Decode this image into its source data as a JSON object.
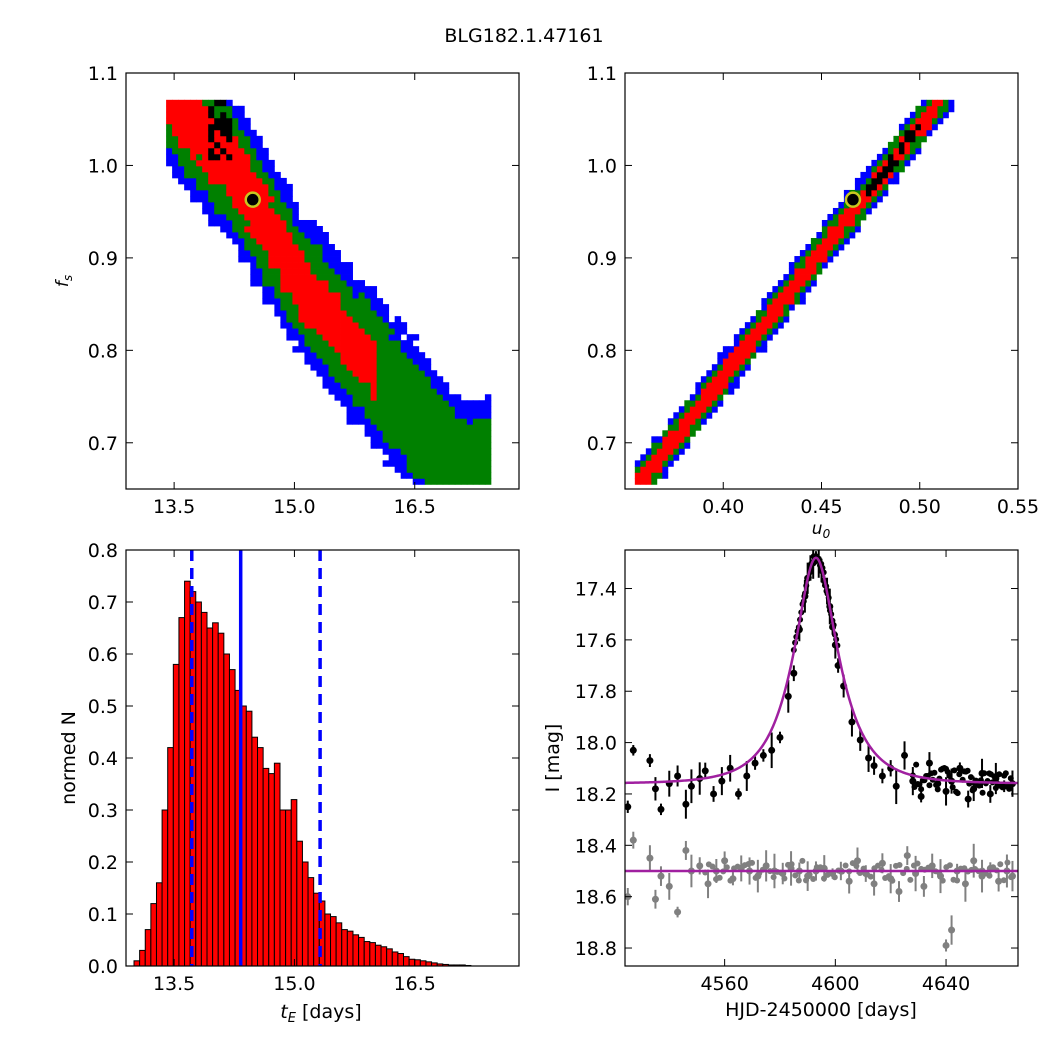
{
  "figure_title": "BLG182.1.47161",
  "colors": {
    "sigma1": "#ff0000",
    "sigma2": "#008000",
    "sigma3": "#0000ff",
    "core": "#000000",
    "best_fit_face": "#000000",
    "best_fit_ring": "#c8c820",
    "hist_bar": "#ff0000",
    "hist_edge": "#000000",
    "median_line": "#0000ff",
    "model_line": "#a020a0",
    "ogle_points": "#000000",
    "baseline_points": "#808080"
  },
  "chart_data": [
    {
      "type": "heatmap",
      "panel": "fs_vs_tE",
      "xlabel": "",
      "ylabel": "f_s",
      "xlim": [
        12.9,
        17.8
      ],
      "ylim": [
        0.65,
        1.1
      ],
      "xticks": [
        "13.5",
        "15.0",
        "16.5"
      ],
      "yticks": [
        "0.7",
        "0.8",
        "0.9",
        "1.0",
        "1.1"
      ],
      "credible_region": {
        "axis_x": [
          [
            13.5,
            1.07
          ],
          [
            14.2,
            1.0
          ],
          [
            15.1,
            0.87
          ],
          [
            16.1,
            0.77
          ],
          [
            17.1,
            0.665
          ]
        ],
        "half_width_fs": {
          "sigma1": 0.035,
          "sigma2": 0.06,
          "sigma3": 0.075
        },
        "core_region": {
          "tE": [
            13.85,
            14.2
          ],
          "fs": [
            1.0,
            1.07
          ]
        }
      },
      "best_fit": {
        "tE": 14.48,
        "fs": 0.963
      }
    },
    {
      "type": "heatmap",
      "panel": "fs_vs_u0",
      "xlabel": "u_0",
      "ylabel": "",
      "xlim": [
        0.35,
        0.55
      ],
      "ylim": [
        0.65,
        1.1
      ],
      "xticks": [
        "0.40",
        "0.45",
        "0.50",
        "0.55"
      ],
      "yticks": [
        "0.7",
        "0.8",
        "0.9",
        "1.0",
        "1.1"
      ],
      "credible_region": {
        "axis_x": [
          [
            0.359,
            0.66
          ],
          [
            0.51,
            1.07
          ]
        ],
        "half_width_fs": {
          "sigma1": 0.012,
          "sigma2": 0.02,
          "sigma3": 0.026
        },
        "core_region": {
          "u0": [
            0.47,
            0.5
          ],
          "fs": [
            0.96,
            1.06
          ]
        }
      },
      "best_fit": {
        "u0": 0.466,
        "fs": 0.963
      }
    },
    {
      "type": "bar",
      "panel": "tE_histogram",
      "xlabel": "t_E [days]",
      "ylabel": "normed N",
      "xlim": [
        12.9,
        17.8
      ],
      "ylim": [
        0.0,
        0.8
      ],
      "xticks": [
        "13.5",
        "15.0",
        "16.5"
      ],
      "yticks": [
        "0.0",
        "0.1",
        "0.2",
        "0.3",
        "0.4",
        "0.5",
        "0.6",
        "0.7",
        "0.8"
      ],
      "bin_start": 13.0,
      "bin_width": 0.07,
      "values": [
        0.01,
        0.03,
        0.07,
        0.12,
        0.16,
        0.3,
        0.42,
        0.58,
        0.67,
        0.74,
        0.72,
        0.7,
        0.68,
        0.65,
        0.66,
        0.64,
        0.6,
        0.57,
        0.53,
        0.5,
        0.49,
        0.44,
        0.42,
        0.38,
        0.37,
        0.39,
        0.3,
        0.3,
        0.32,
        0.24,
        0.2,
        0.17,
        0.14,
        0.125,
        0.1,
        0.095,
        0.083,
        0.07,
        0.067,
        0.06,
        0.055,
        0.047,
        0.045,
        0.04,
        0.037,
        0.033,
        0.027,
        0.024,
        0.018,
        0.013,
        0.012,
        0.01,
        0.008,
        0.006,
        0.004,
        0.003,
        0.002,
        0.002,
        0.002,
        0.001
      ],
      "median_tE": 14.33,
      "interval_tE": [
        13.72,
        15.32
      ]
    },
    {
      "type": "scatter",
      "panel": "light_curve",
      "xlabel": "HJD-2450000 [days]",
      "ylabel": "I [mag]",
      "xlim": [
        4524,
        4666
      ],
      "ylim": [
        18.87,
        17.25
      ],
      "xticks": [
        "4560",
        "4600",
        "4640"
      ],
      "yticks": [
        "17.4",
        "17.6",
        "17.8",
        "18.0",
        "18.2",
        "18.4",
        "18.6",
        "18.8"
      ],
      "model": {
        "t0": 4593,
        "peak_mag": 17.28,
        "base_mag": 18.16,
        "u0": 0.466,
        "tE": 14.4
      },
      "residual_baseline_mag": 18.5,
      "series": [
        {
          "points": [
            [
              4525,
              18.25
            ],
            [
              4527,
              18.03
            ],
            [
              4533,
              18.07
            ],
            [
              4535,
              18.18
            ],
            [
              4537,
              18.26
            ],
            [
              4540,
              18.16
            ],
            [
              4543,
              18.13
            ],
            [
              4546,
              18.24
            ],
            [
              4548,
              18.17
            ],
            [
              4551,
              18.14
            ],
            [
              4553,
              18.11
            ],
            [
              4556,
              18.2
            ],
            [
              4559,
              18.15
            ],
            [
              4562,
              18.1
            ],
            [
              4565,
              18.2
            ],
            [
              4568,
              18.13
            ],
            [
              4571,
              18.08
            ],
            [
              4574,
              18.05
            ],
            [
              4577,
              18.03
            ],
            [
              4580,
              17.98
            ],
            [
              4583,
              17.82
            ],
            [
              4585,
              17.73
            ],
            [
              4587,
              17.56
            ],
            [
              4589,
              17.43
            ],
            [
              4590,
              17.36
            ],
            [
              4591,
              17.32
            ],
            [
              4592,
              17.3
            ],
            [
              4593,
              17.28
            ],
            [
              4594,
              17.29
            ],
            [
              4595,
              17.33
            ],
            [
              4596,
              17.37
            ],
            [
              4597,
              17.41
            ],
            [
              4598,
              17.47
            ],
            [
              4599,
              17.55
            ],
            [
              4600,
              17.62
            ],
            [
              4601,
              17.7
            ],
            [
              4603,
              17.78
            ],
            [
              4606,
              17.92
            ],
            [
              4609,
              17.99
            ],
            [
              4612,
              18.06
            ],
            [
              4614,
              18.09
            ],
            [
              4617,
              18.13
            ],
            [
              4620,
              18.1
            ],
            [
              4622,
              18.17
            ],
            [
              4625,
              18.05
            ],
            [
              4628,
              18.15
            ],
            [
              4631,
              18.21
            ],
            [
              4634,
              18.08
            ],
            [
              4637,
              18.16
            ],
            [
              4640,
              18.19
            ],
            [
              4642,
              18.15
            ],
            [
              4645,
              18.1
            ],
            [
              4648,
              18.22
            ],
            [
              4650,
              18.18
            ],
            [
              4653,
              18.12
            ],
            [
              4656,
              18.2
            ],
            [
              4658,
              18.14
            ],
            [
              4661,
              18.17
            ],
            [
              4664,
              18.16
            ]
          ]
        },
        {
          "points": [
            [
              4525,
              18.6
            ],
            [
              4527,
              18.38
            ],
            [
              4533,
              18.45
            ],
            [
              4535,
              18.61
            ],
            [
              4537,
              18.52
            ],
            [
              4540,
              18.56
            ],
            [
              4543,
              18.66
            ],
            [
              4546,
              18.42
            ],
            [
              4548,
              18.5
            ],
            [
              4551,
              18.48
            ],
            [
              4554,
              18.55
            ],
            [
              4557,
              18.5
            ],
            [
              4560,
              18.46
            ],
            [
              4563,
              18.53
            ],
            [
              4566,
              18.49
            ],
            [
              4569,
              18.5
            ],
            [
              4572,
              18.52
            ],
            [
              4575,
              18.48
            ],
            [
              4578,
              18.5
            ],
            [
              4581,
              18.51
            ],
            [
              4584,
              18.49
            ],
            [
              4587,
              18.5
            ],
            [
              4590,
              18.52
            ],
            [
              4593,
              18.5
            ],
            [
              4596,
              18.49
            ],
            [
              4599,
              18.51
            ],
            [
              4602,
              18.5
            ],
            [
              4605,
              18.54
            ],
            [
              4608,
              18.46
            ],
            [
              4611,
              18.51
            ],
            [
              4614,
              18.55
            ],
            [
              4617,
              18.47
            ],
            [
              4620,
              18.53
            ],
            [
              4623,
              18.58
            ],
            [
              4626,
              18.44
            ],
            [
              4629,
              18.51
            ],
            [
              4632,
              18.56
            ],
            [
              4635,
              18.48
            ],
            [
              4638,
              18.52
            ],
            [
              4640,
              18.79
            ],
            [
              4642,
              18.73
            ],
            [
              4644,
              18.5
            ],
            [
              4647,
              18.55
            ],
            [
              4650,
              18.46
            ],
            [
              4653,
              18.52
            ],
            [
              4656,
              18.49
            ],
            [
              4659,
              18.54
            ],
            [
              4662,
              18.5
            ],
            [
              4664,
              18.52
            ]
          ]
        }
      ]
    }
  ]
}
